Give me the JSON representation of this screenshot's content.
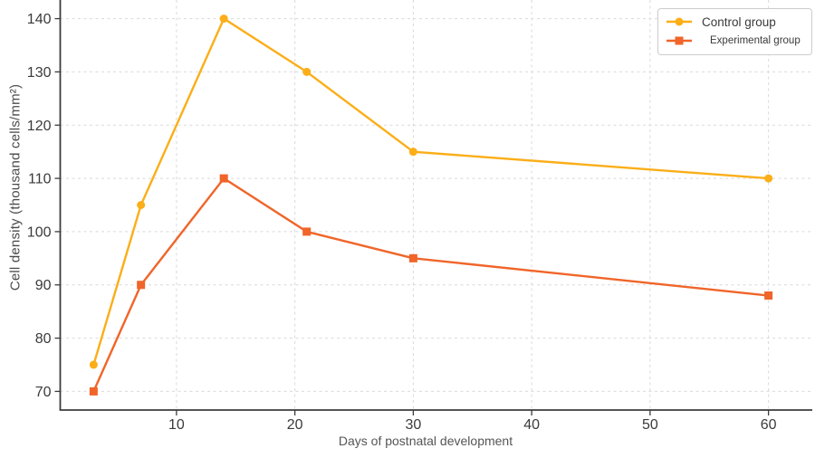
{
  "chart_data": {
    "type": "line",
    "title": "",
    "xlabel": "Days of postnatal development",
    "ylabel": "Cell density (thousand cells/mm²)",
    "x": [
      3,
      7,
      14,
      21,
      30,
      60
    ],
    "series": [
      {
        "name": "Control group",
        "values": [
          75,
          105,
          140,
          130,
          115,
          110
        ],
        "color": "#FBAE18",
        "marker": "circle"
      },
      {
        "name": "Experimental group",
        "values": [
          70,
          90,
          110,
          100,
          95,
          88
        ],
        "color": "#F06529",
        "marker": "square"
      }
    ],
    "x_ticks": [
      10,
      20,
      30,
      40,
      50,
      60
    ],
    "y_ticks": [
      70,
      80,
      90,
      100,
      110,
      120,
      130,
      140
    ],
    "xlim": [
      0.18,
      63.7
    ],
    "ylim": [
      66.5,
      143.5
    ],
    "grid": "dashed-both",
    "legend_position": "top-right"
  },
  "colors": {
    "background": "#FFFFFF",
    "grid": "#D9D9D9",
    "spine": "#3C3C3C",
    "tick_label": "#3A3A3A",
    "axis_label": "#555555",
    "legend_border": "#CCCCCC"
  }
}
